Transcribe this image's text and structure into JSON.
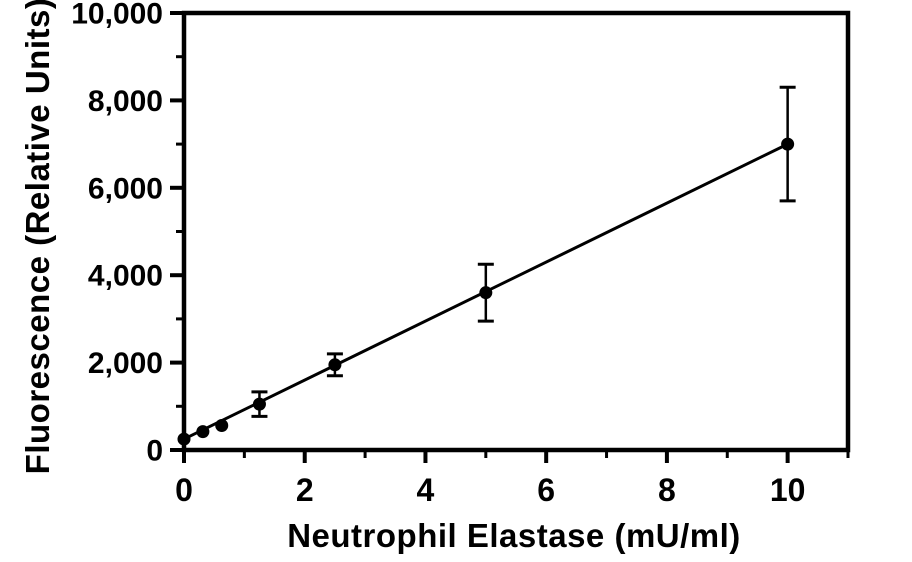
{
  "figure": {
    "background": "#ffffff",
    "ink_color": "#000000"
  },
  "chart_data": {
    "type": "scatter",
    "title": "",
    "xlabel": "Neutrophil Elastase (mU/ml)",
    "ylabel": "Fluorescence (Relative Units)",
    "xlim": [
      0,
      11
    ],
    "ylim": [
      0,
      10000
    ],
    "grid": false,
    "legend": "none",
    "marker": "filled-circle",
    "series": [
      {
        "name": "neutrophil-elastase-standard-curve",
        "color": "#000000",
        "points": [
          {
            "x": 0,
            "y": 250,
            "yerr": 0
          },
          {
            "x": 0.3125,
            "y": 420,
            "yerr": 0
          },
          {
            "x": 0.625,
            "y": 560,
            "yerr": 0
          },
          {
            "x": 1.25,
            "y": 1050,
            "yerr": 280
          },
          {
            "x": 2.5,
            "y": 1950,
            "yerr": 250
          },
          {
            "x": 5,
            "y": 3600,
            "yerr": 650
          },
          {
            "x": 10,
            "y": 7000,
            "yerr": 1300
          }
        ]
      }
    ],
    "fit_line": {
      "x1": 0,
      "y1": 250,
      "x2": 10,
      "y2": 7000
    },
    "x_axis": {
      "major_ticks": [
        {
          "value": 0,
          "label": "0"
        },
        {
          "value": 2,
          "label": "2"
        },
        {
          "value": 4,
          "label": "4"
        },
        {
          "value": 6,
          "label": "6"
        },
        {
          "value": 8,
          "label": "8"
        },
        {
          "value": 10,
          "label": "10"
        }
      ],
      "minor_ticks": [
        1,
        3,
        5,
        7,
        9,
        11
      ]
    },
    "y_axis": {
      "major_ticks": [
        {
          "value": 0,
          "label": "0"
        },
        {
          "value": 2000,
          "label": "2,000"
        },
        {
          "value": 4000,
          "label": "4,000"
        },
        {
          "value": 6000,
          "label": "6,000"
        },
        {
          "value": 8000,
          "label": "8,000"
        },
        {
          "value": 10000,
          "label": "10,000"
        }
      ],
      "minor_ticks": [
        1000,
        3000,
        5000,
        7000,
        9000
      ]
    }
  }
}
